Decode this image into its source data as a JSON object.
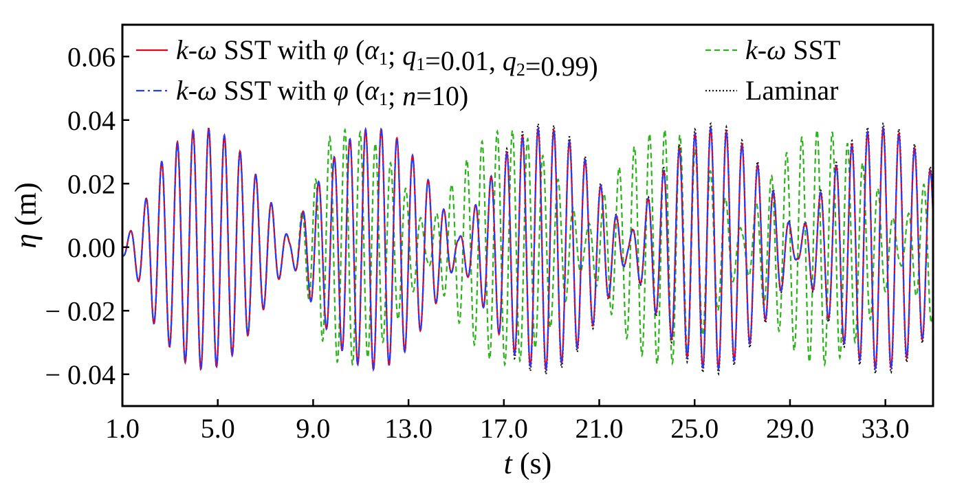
{
  "chart_data": {
    "type": "line",
    "title": "",
    "xlabel": {
      "symbol": "t",
      "unit": " (s)"
    },
    "ylabel": {
      "symbol": "η",
      "unit": " (m)"
    },
    "xlim": [
      1.0,
      35.0
    ],
    "ylim": [
      -0.05,
      0.07
    ],
    "xticks": [
      "1.0",
      "5.0",
      "9.0",
      "13.0",
      "17.0",
      "21.0",
      "25.0",
      "29.0",
      "33.0"
    ],
    "xtick_values": [
      1,
      5,
      9,
      13,
      17,
      21,
      25,
      29,
      33
    ],
    "yticks": [
      {
        "value": 0.06,
        "sign": "",
        "num": "0.06"
      },
      {
        "value": 0.04,
        "sign": "",
        "num": "0.04"
      },
      {
        "value": 0.02,
        "sign": "",
        "num": "0.02"
      },
      {
        "value": 0.0,
        "sign": "",
        "num": "0.00"
      },
      {
        "value": -0.02,
        "sign": "−",
        "num": "0.02"
      },
      {
        "value": -0.04,
        "sign": "−",
        "num": "0.04"
      }
    ],
    "legend_placement": "top",
    "grid": false,
    "series": [
      {
        "key": "kw-sst-phi-q",
        "name_parts": [
          {
            "t": "k",
            "i": true
          },
          {
            "t": "-"
          },
          {
            "t": "ω",
            "i": true
          },
          {
            "t": " SST with "
          },
          {
            "t": "φ",
            "i": true
          },
          {
            "t": " ("
          },
          {
            "t": "α",
            "i": true
          },
          {
            "t": "1",
            "sub": true
          },
          {
            "t": "; "
          },
          {
            "t": "q",
            "i": true
          },
          {
            "t": "1",
            "sub": true
          },
          {
            "t": "=0.01, "
          },
          {
            "t": "q",
            "i": true
          },
          {
            "t": "2",
            "sub": true
          },
          {
            "t": "=0.99)"
          }
        ],
        "color": "#e8001c",
        "dash": "",
        "description": "Amplitude-modulated wave, envelope zero near t=8, 14.5, 22, 29.5; peaks about ±0.035 m",
        "values_sample": {
          "x": [
            1.0,
            4.6,
            8.0,
            11.0,
            14.5,
            18.6,
            22.0,
            25.8,
            29.5,
            32.6
          ],
          "y": [
            0.005,
            0.038,
            0.0,
            0.036,
            0.0,
            0.033,
            0.0,
            0.034,
            0.0,
            0.033
          ]
        }
      },
      {
        "key": "kw-sst-phi-n",
        "name_parts": [
          {
            "t": "k",
            "i": true
          },
          {
            "t": "-"
          },
          {
            "t": "ω",
            "i": true
          },
          {
            "t": " SST with "
          },
          {
            "t": "φ",
            "i": true
          },
          {
            "t": " ("
          },
          {
            "t": "α",
            "i": true
          },
          {
            "t": "1",
            "sub": true
          },
          {
            "t": "; "
          },
          {
            "t": "n",
            "i": true
          },
          {
            "t": "=10)"
          }
        ],
        "color": "#1f3cff",
        "dash": "12 5 3 5",
        "description": "Nearly identical to the q-parameter run",
        "values_sample": {
          "x": [
            1.0,
            4.6,
            8.0,
            11.0,
            14.5,
            18.6,
            22.0,
            25.8,
            29.5,
            32.6
          ],
          "y": [
            0.005,
            0.038,
            0.0,
            0.036,
            0.0,
            0.033,
            0.0,
            0.034,
            0.0,
            0.033
          ]
        }
      },
      {
        "key": "kw-sst",
        "name_parts": [
          {
            "t": "k",
            "i": true
          },
          {
            "t": "-"
          },
          {
            "t": "ω",
            "i": true
          },
          {
            "t": " SST"
          }
        ],
        "color": "#2bb31a",
        "dash": "8 5",
        "description": "Matches until ~t=8.5, then envelope shifts; peaks near t=17.5 and t=29 (about ±0.038 m)",
        "values_sample": {
          "x": [
            1.0,
            4.6,
            8.0,
            9.8,
            13.6,
            17.5,
            20.7,
            23.4,
            26.0,
            29.2
          ],
          "y": [
            0.005,
            0.038,
            0.0,
            0.032,
            0.0,
            0.036,
            0.0,
            0.037,
            0.0,
            0.036
          ]
        }
      },
      {
        "key": "laminar",
        "name_parts": [
          {
            "t": "Laminar"
          }
        ],
        "color": "#111111",
        "dash": "2 3",
        "description": "Overlaps the turbulence-corrected runs, slightly larger troughs late in the record",
        "values_sample": {
          "x": [
            1.0,
            4.6,
            8.0,
            11.0,
            14.5,
            18.6,
            22.0,
            25.8,
            29.5,
            32.6
          ],
          "y": [
            0.005,
            0.038,
            0.0,
            0.036,
            0.0,
            0.033,
            0.0,
            0.034,
            0.0,
            0.033
          ]
        }
      }
    ]
  }
}
